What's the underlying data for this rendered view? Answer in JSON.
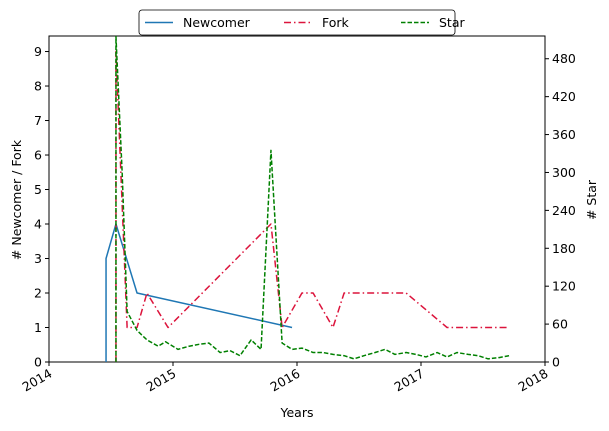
{
  "chart_data": {
    "type": "line",
    "title": "",
    "xlabel": "Years",
    "ylabel_left": "# Newcomer / Fork",
    "ylabel_right": "# Star",
    "x_ticks": [
      "2014",
      "2015",
      "2016",
      "2017",
      "2018"
    ],
    "x_range": [
      2014.0,
      2018.0
    ],
    "ylim_left": [
      0,
      9.45
    ],
    "ylim_right": [
      0,
      516
    ],
    "y_ticks_left": [
      0,
      1,
      2,
      3,
      4,
      5,
      6,
      7,
      8,
      9
    ],
    "y_ticks_right": [
      0,
      60,
      120,
      180,
      240,
      300,
      360,
      420,
      480
    ],
    "grid": false,
    "legend_placement": "top-center",
    "series": [
      {
        "name": "Newcomer",
        "axis": "left",
        "color": "#1f77b4",
        "style": "solid",
        "points": [
          [
            2014.46,
            0
          ],
          [
            2014.46,
            3
          ],
          [
            2014.54,
            4
          ],
          [
            2014.71,
            2
          ],
          [
            2015.96,
            1
          ]
        ]
      },
      {
        "name": "Fork",
        "axis": "left",
        "color": "#dc143c",
        "style": "dashdot",
        "points": [
          [
            2014.54,
            0
          ],
          [
            2014.54,
            9
          ],
          [
            2014.63,
            1
          ],
          [
            2014.71,
            1
          ],
          [
            2014.79,
            2
          ],
          [
            2014.96,
            1
          ],
          [
            2015.79,
            4
          ],
          [
            2015.88,
            1
          ],
          [
            2016.04,
            2
          ],
          [
            2016.13,
            2
          ],
          [
            2016.29,
            1
          ],
          [
            2016.38,
            2
          ],
          [
            2016.54,
            2
          ],
          [
            2016.71,
            2
          ],
          [
            2016.88,
            2
          ],
          [
            2017.21,
            1
          ],
          [
            2017.38,
            1
          ],
          [
            2017.54,
            1
          ],
          [
            2017.71,
            1
          ]
        ]
      },
      {
        "name": "Star",
        "axis": "right",
        "color": "#008000",
        "style": "dashed",
        "points": [
          [
            2014.54,
            0
          ],
          [
            2014.54,
            515
          ],
          [
            2014.59,
            300
          ],
          [
            2014.63,
            80
          ],
          [
            2014.71,
            50
          ],
          [
            2014.79,
            35
          ],
          [
            2014.88,
            25
          ],
          [
            2014.94,
            32
          ],
          [
            2015.04,
            20
          ],
          [
            2015.13,
            25
          ],
          [
            2015.21,
            28
          ],
          [
            2015.29,
            30
          ],
          [
            2015.38,
            15
          ],
          [
            2015.46,
            18
          ],
          [
            2015.54,
            10
          ],
          [
            2015.63,
            35
          ],
          [
            2015.71,
            20
          ],
          [
            2015.79,
            335
          ],
          [
            2015.88,
            30
          ],
          [
            2015.96,
            20
          ],
          [
            2016.04,
            22
          ],
          [
            2016.13,
            15
          ],
          [
            2016.21,
            15
          ],
          [
            2016.29,
            12
          ],
          [
            2016.38,
            10
          ],
          [
            2016.46,
            5
          ],
          [
            2016.54,
            10
          ],
          [
            2016.63,
            15
          ],
          [
            2016.71,
            20
          ],
          [
            2016.79,
            12
          ],
          [
            2016.88,
            15
          ],
          [
            2016.96,
            12
          ],
          [
            2017.04,
            8
          ],
          [
            2017.13,
            15
          ],
          [
            2017.21,
            8
          ],
          [
            2017.29,
            15
          ],
          [
            2017.38,
            12
          ],
          [
            2017.46,
            10
          ],
          [
            2017.54,
            5
          ],
          [
            2017.63,
            7
          ],
          [
            2017.71,
            10
          ]
        ]
      }
    ]
  }
}
